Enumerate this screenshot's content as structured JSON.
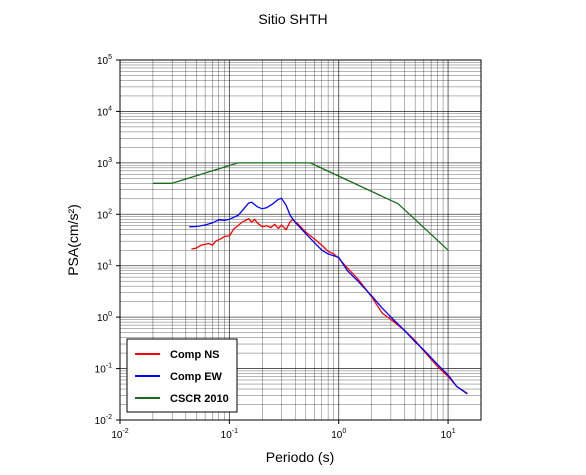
{
  "chart_data": {
    "type": "line",
    "title": "Sitio SHTH",
    "xlabel": "Periodo (s)",
    "ylabel": "PSA(cm/s²)",
    "xscale": "log",
    "yscale": "log",
    "xlim": [
      0.01,
      20
    ],
    "ylim": [
      0.01,
      100000
    ],
    "grid": true,
    "legend_position": "bottom-left",
    "x_ticks": [
      {
        "base": "10",
        "exp": "-2",
        "value": 0.01
      },
      {
        "base": "10",
        "exp": "-1",
        "value": 0.1
      },
      {
        "base": "10",
        "exp": "0",
        "value": 1
      },
      {
        "base": "10",
        "exp": "1",
        "value": 10
      }
    ],
    "y_ticks": [
      {
        "base": "10",
        "exp": "-2",
        "value": 0.01
      },
      {
        "base": "10",
        "exp": "-1",
        "value": 0.1
      },
      {
        "base": "10",
        "exp": "0",
        "value": 1
      },
      {
        "base": "10",
        "exp": "1",
        "value": 10
      },
      {
        "base": "10",
        "exp": "2",
        "value": 100
      },
      {
        "base": "10",
        "exp": "3",
        "value": 1000
      },
      {
        "base": "10",
        "exp": "4",
        "value": 10000
      },
      {
        "base": "10",
        "exp": "5",
        "value": 100000
      }
    ],
    "series": [
      {
        "name": "Comp NS",
        "color": "#ff0000",
        "points": [
          [
            0.045,
            21
          ],
          [
            0.05,
            22
          ],
          [
            0.055,
            25
          ],
          [
            0.06,
            26
          ],
          [
            0.065,
            27
          ],
          [
            0.07,
            25
          ],
          [
            0.075,
            30
          ],
          [
            0.08,
            32
          ],
          [
            0.085,
            34
          ],
          [
            0.09,
            37
          ],
          [
            0.1,
            38
          ],
          [
            0.11,
            52
          ],
          [
            0.12,
            60
          ],
          [
            0.13,
            70
          ],
          [
            0.14,
            75
          ],
          [
            0.15,
            82
          ],
          [
            0.16,
            70
          ],
          [
            0.17,
            80
          ],
          [
            0.18,
            68
          ],
          [
            0.2,
            57
          ],
          [
            0.22,
            60
          ],
          [
            0.24,
            55
          ],
          [
            0.26,
            64
          ],
          [
            0.28,
            53
          ],
          [
            0.3,
            62
          ],
          [
            0.33,
            50
          ],
          [
            0.36,
            72
          ],
          [
            0.38,
            78
          ],
          [
            0.42,
            66
          ],
          [
            0.5,
            45
          ],
          [
            0.6,
            33
          ],
          [
            0.7,
            25
          ],
          [
            0.8,
            19
          ],
          [
            0.9,
            17
          ],
          [
            1.0,
            14
          ],
          [
            1.2,
            9
          ],
          [
            1.5,
            5.5
          ],
          [
            2.0,
            2.5
          ],
          [
            2.5,
            1.2
          ],
          [
            3.0,
            0.9
          ],
          [
            4.0,
            0.55
          ],
          [
            5.0,
            0.35
          ],
          [
            6.0,
            0.22
          ],
          [
            8.0,
            0.11
          ],
          [
            10.0,
            0.07
          ],
          [
            12.0,
            0.045
          ],
          [
            15.0,
            0.033
          ]
        ]
      },
      {
        "name": "Comp EW",
        "color": "#0000ff",
        "points": [
          [
            0.043,
            57
          ],
          [
            0.05,
            58
          ],
          [
            0.06,
            62
          ],
          [
            0.07,
            68
          ],
          [
            0.08,
            78
          ],
          [
            0.09,
            76
          ],
          [
            0.1,
            80
          ],
          [
            0.12,
            95
          ],
          [
            0.13,
            115
          ],
          [
            0.15,
            165
          ],
          [
            0.16,
            172
          ],
          [
            0.18,
            140
          ],
          [
            0.2,
            128
          ],
          [
            0.22,
            135
          ],
          [
            0.25,
            160
          ],
          [
            0.28,
            195
          ],
          [
            0.3,
            205
          ],
          [
            0.33,
            150
          ],
          [
            0.36,
            95
          ],
          [
            0.4,
            70
          ],
          [
            0.5,
            42
          ],
          [
            0.6,
            28
          ],
          [
            0.7,
            20
          ],
          [
            0.8,
            17
          ],
          [
            1.0,
            14.5
          ],
          [
            1.2,
            8
          ],
          [
            1.5,
            5
          ],
          [
            2.0,
            2.6
          ],
          [
            2.5,
            1.5
          ],
          [
            3.0,
            1.0
          ],
          [
            4.0,
            0.55
          ],
          [
            5.0,
            0.33
          ],
          [
            6.0,
            0.23
          ],
          [
            8.0,
            0.12
          ],
          [
            10.0,
            0.075
          ],
          [
            12.0,
            0.045
          ],
          [
            15.0,
            0.032
          ]
        ]
      },
      {
        "name": "CSCR 2010",
        "color": "#1a6b1a",
        "points": [
          [
            0.02,
            400
          ],
          [
            0.03,
            400
          ],
          [
            0.12,
            1000
          ],
          [
            0.55,
            1000
          ],
          [
            3.5,
            160
          ],
          [
            10.0,
            20
          ]
        ]
      }
    ]
  }
}
